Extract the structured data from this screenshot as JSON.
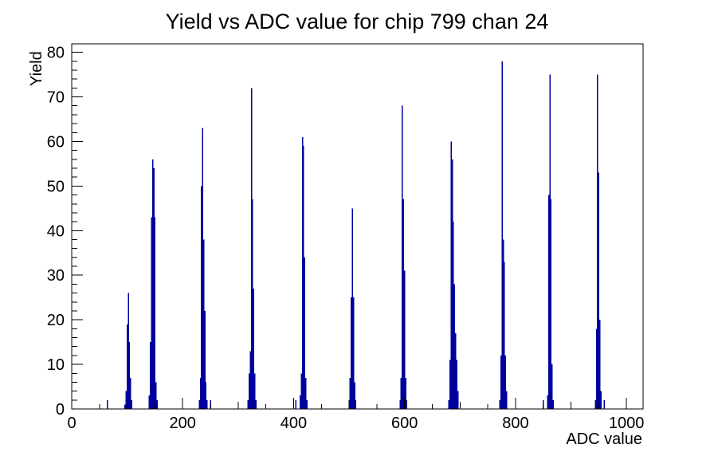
{
  "window": {
    "background": "#ffffff"
  },
  "chart_data": {
    "type": "bar",
    "title": "Yield vs ADC value for chip 799 chan 24",
    "xlabel": "ADC value",
    "ylabel": "Yield",
    "xlim": [
      0,
      1030
    ],
    "ylim": [
      0,
      81.9
    ],
    "x_major_ticks": [
      0,
      200,
      400,
      600,
      800,
      1000
    ],
    "x_minor_step": 50,
    "y_major_ticks": [
      0,
      10,
      20,
      30,
      40,
      50,
      60,
      70,
      80
    ],
    "y_minor_step": 2,
    "grid": false,
    "legend": null,
    "frame_color": "#000000",
    "bar_color": "#00009c",
    "background_color": "#ffffff",
    "bin_width": 2,
    "bins": [
      [
        64,
        2
      ],
      [
        96,
        1
      ],
      [
        98,
        4
      ],
      [
        100,
        19
      ],
      [
        102,
        26
      ],
      [
        104,
        15
      ],
      [
        106,
        7
      ],
      [
        108,
        2
      ],
      [
        140,
        3
      ],
      [
        142,
        15
      ],
      [
        144,
        43
      ],
      [
        146,
        56
      ],
      [
        148,
        54
      ],
      [
        150,
        43
      ],
      [
        152,
        6
      ],
      [
        154,
        2
      ],
      [
        230,
        2
      ],
      [
        232,
        7
      ],
      [
        234,
        50
      ],
      [
        236,
        63
      ],
      [
        238,
        38
      ],
      [
        240,
        22
      ],
      [
        242,
        6
      ],
      [
        244,
        2
      ],
      [
        250,
        2
      ],
      [
        318,
        2
      ],
      [
        320,
        8
      ],
      [
        322,
        13
      ],
      [
        324,
        72
      ],
      [
        326,
        47
      ],
      [
        328,
        27
      ],
      [
        330,
        8
      ],
      [
        332,
        2
      ],
      [
        404,
        2
      ],
      [
        412,
        3
      ],
      [
        414,
        8
      ],
      [
        416,
        61
      ],
      [
        418,
        59
      ],
      [
        420,
        34
      ],
      [
        422,
        7
      ],
      [
        424,
        2
      ],
      [
        500,
        2
      ],
      [
        502,
        7
      ],
      [
        504,
        25
      ],
      [
        506,
        45
      ],
      [
        508,
        25
      ],
      [
        510,
        6
      ],
      [
        512,
        2
      ],
      [
        592,
        2
      ],
      [
        594,
        7
      ],
      [
        596,
        68
      ],
      [
        598,
        47
      ],
      [
        600,
        31
      ],
      [
        602,
        7
      ],
      [
        604,
        2
      ],
      [
        680,
        2
      ],
      [
        682,
        11
      ],
      [
        684,
        60
      ],
      [
        686,
        56
      ],
      [
        688,
        42
      ],
      [
        690,
        28
      ],
      [
        692,
        17
      ],
      [
        694,
        11
      ],
      [
        696,
        4
      ],
      [
        772,
        2
      ],
      [
        774,
        12
      ],
      [
        776,
        78
      ],
      [
        778,
        38
      ],
      [
        780,
        33
      ],
      [
        782,
        12
      ],
      [
        784,
        4
      ],
      [
        850,
        2
      ],
      [
        858,
        3
      ],
      [
        860,
        48
      ],
      [
        862,
        75
      ],
      [
        864,
        47
      ],
      [
        866,
        10
      ],
      [
        868,
        2
      ],
      [
        944,
        2
      ],
      [
        946,
        18
      ],
      [
        948,
        75
      ],
      [
        950,
        53
      ],
      [
        952,
        20
      ],
      [
        954,
        4
      ],
      [
        960,
        2
      ]
    ]
  }
}
